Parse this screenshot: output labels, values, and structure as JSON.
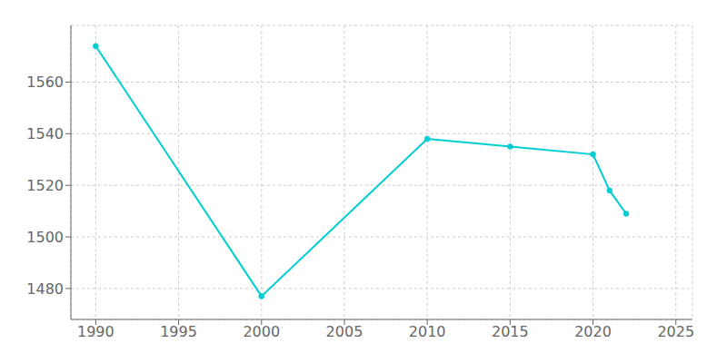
{
  "chart_data": {
    "type": "line",
    "x": [
      1990,
      2000,
      2010,
      2015,
      2020,
      2021,
      2022
    ],
    "values": [
      1574,
      1477,
      1538,
      1535,
      1532,
      1518,
      1509
    ],
    "color": "#00CED1",
    "marker": "circle",
    "xlim": [
      1988.5,
      2026
    ],
    "ylim": [
      1468,
      1582
    ],
    "xticks": [
      1990,
      1995,
      2000,
      2005,
      2010,
      2015,
      2020,
      2025
    ],
    "yticks": [
      1480,
      1500,
      1520,
      1540,
      1560
    ],
    "grid": true
  }
}
